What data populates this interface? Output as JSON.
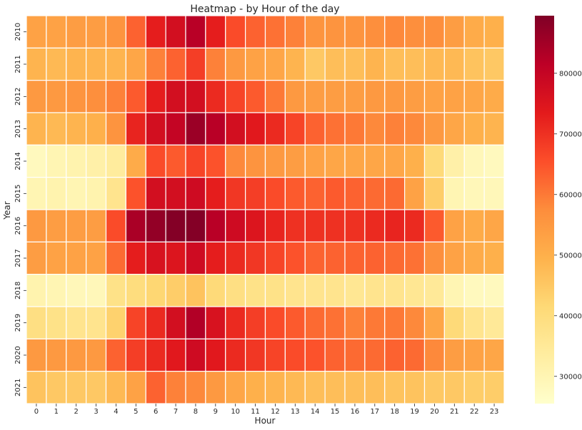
{
  "chart_data": {
    "type": "heatmap",
    "title": "Heatmap - by Hour of the day",
    "xlabel": "Hour",
    "ylabel": "Year",
    "x": [
      0,
      1,
      2,
      3,
      4,
      5,
      6,
      7,
      8,
      9,
      10,
      11,
      12,
      13,
      14,
      15,
      16,
      17,
      18,
      19,
      20,
      21,
      22,
      23
    ],
    "y": [
      2010,
      2011,
      2012,
      2013,
      2014,
      2015,
      2016,
      2017,
      2018,
      2019,
      2020,
      2021
    ],
    "values": [
      [
        53000,
        53000,
        54000,
        54000,
        56000,
        63000,
        73000,
        77000,
        82000,
        73000,
        66000,
        63000,
        61000,
        59000,
        56000,
        56000,
        56000,
        57000,
        58000,
        57000,
        57000,
        54000,
        51000,
        50000
      ],
      [
        49000,
        48000,
        49000,
        49000,
        49000,
        52000,
        59000,
        63000,
        68000,
        59000,
        55000,
        53000,
        52000,
        49000,
        45000,
        47000,
        47000,
        49000,
        47000,
        47000,
        48000,
        48000,
        46000,
        45000
      ],
      [
        55000,
        55000,
        56000,
        57000,
        59000,
        64000,
        73000,
        77000,
        77000,
        71000,
        67000,
        64000,
        60000,
        55000,
        54000,
        54000,
        54000,
        55000,
        55000,
        54000,
        53000,
        53000,
        52000,
        51000
      ],
      [
        49000,
        48000,
        49000,
        50000,
        56000,
        72000,
        77000,
        80000,
        86000,
        82000,
        77000,
        74000,
        71000,
        67000,
        63000,
        61000,
        60000,
        58000,
        59000,
        58000,
        55000,
        52000,
        50000,
        49000
      ],
      [
        28000,
        30000,
        31000,
        32000,
        34000,
        51000,
        66000,
        64000,
        67000,
        65000,
        58000,
        56000,
        55000,
        54000,
        53000,
        52000,
        52000,
        52000,
        52000,
        50000,
        41000,
        32000,
        29000,
        28000
      ],
      [
        30000,
        31000,
        30000,
        31000,
        37000,
        65000,
        77000,
        77000,
        78000,
        73000,
        69000,
        68000,
        66000,
        64000,
        63000,
        64000,
        63000,
        62000,
        62000,
        53000,
        44000,
        30000,
        29000,
        29000
      ],
      [
        55000,
        54000,
        54000,
        54000,
        66000,
        84000,
        87000,
        89000,
        89000,
        82000,
        78000,
        75000,
        72000,
        70000,
        70000,
        70000,
        70000,
        71000,
        72000,
        71000,
        64000,
        53000,
        51000,
        52000
      ],
      [
        54000,
        53000,
        53000,
        53000,
        62000,
        73000,
        76000,
        75000,
        78000,
        73000,
        71000,
        69000,
        67000,
        65000,
        63000,
        63000,
        63000,
        63000,
        62000,
        61000,
        57000,
        53000,
        51000,
        50000
      ],
      [
        31000,
        30000,
        29000,
        29000,
        38000,
        40000,
        42000,
        44000,
        46000,
        41000,
        39000,
        38000,
        38000,
        37000,
        37000,
        37000,
        36000,
        37000,
        37000,
        36000,
        35000,
        30000,
        28000,
        28000
      ],
      [
        39000,
        38000,
        37000,
        37000,
        43000,
        67000,
        71000,
        77000,
        83000,
        76000,
        71000,
        68000,
        66000,
        64000,
        62000,
        61000,
        59000,
        60000,
        60000,
        58000,
        52000,
        41000,
        37000,
        35000
      ],
      [
        55000,
        55000,
        55000,
        55000,
        63000,
        68000,
        71000,
        74000,
        78000,
        74000,
        71000,
        69000,
        67000,
        66000,
        65000,
        63000,
        62000,
        62000,
        63000,
        62000,
        58000,
        54000,
        53000,
        52000
      ],
      [
        46000,
        45000,
        45000,
        45000,
        48000,
        53000,
        63000,
        59000,
        58000,
        55000,
        52000,
        50000,
        49000,
        48000,
        47000,
        47000,
        47000,
        47000,
        46000,
        46000,
        45000,
        45000,
        44000,
        44000
      ]
    ],
    "vmin": 25500,
    "vmax": 89500,
    "colormap": "YlOrRd",
    "colors": [
      "#ffffcc",
      "#ffeda0",
      "#fed976",
      "#feb24c",
      "#fd8d3c",
      "#fc4e2a",
      "#e31a1c",
      "#bd0026",
      "#800026"
    ],
    "grid_line_color": "#ffffff",
    "colorbar": {
      "ticks": [
        30000,
        40000,
        50000,
        60000,
        70000,
        80000
      ],
      "tick_labels": [
        "30000",
        "40000",
        "50000",
        "60000",
        "70000",
        "80000"
      ],
      "placement": "right"
    }
  }
}
